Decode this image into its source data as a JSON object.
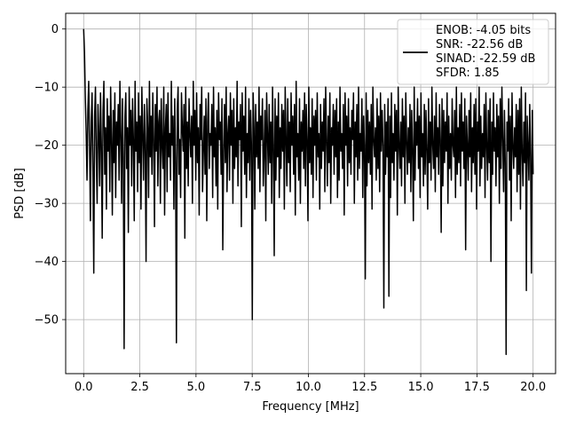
{
  "chart_data": {
    "type": "line",
    "title": "",
    "xlabel": "Frequency [MHz]",
    "ylabel": "PSD [dB]",
    "xlim": [
      -0.8,
      21.0
    ],
    "ylim": [
      -59.3,
      2.7
    ],
    "x_ticks": [
      0.0,
      2.5,
      5.0,
      7.5,
      10.0,
      12.5,
      15.0,
      17.5,
      20.0
    ],
    "x_tick_labels": [
      "0.0",
      "2.5",
      "5.0",
      "7.5",
      "10.0",
      "12.5",
      "15.0",
      "17.5",
      "20.0"
    ],
    "y_ticks": [
      0,
      -10,
      -20,
      -30,
      -40,
      -50
    ],
    "y_tick_labels": [
      "0",
      "−10",
      "−20",
      "−30",
      "−40",
      "−50"
    ],
    "grid": true,
    "legend_placement": "top-right",
    "line_color": "#000000",
    "series": [
      {
        "name": "",
        "x_start": 0.0,
        "x_end": 20.0,
        "values": [
          0,
          -4,
          -12,
          -18,
          -26,
          -14,
          -9,
          -20,
          -33,
          -16,
          -11,
          -24,
          -42,
          -15,
          -10,
          -22,
          -30,
          -13,
          -18,
          -27,
          -11,
          -20,
          -36,
          -14,
          -9,
          -25,
          -17,
          -31,
          -12,
          -21,
          -15,
          -28,
          -10,
          -19,
          -32,
          -14,
          -23,
          -11,
          -29,
          -16,
          -20,
          -13,
          -26,
          -9,
          -18,
          -30,
          -12,
          -22,
          -55,
          -15,
          -11,
          -24,
          -17,
          -35,
          -10,
          -20,
          -14,
          -27,
          -12,
          -19,
          -33,
          -9,
          -21,
          -16,
          -28,
          -11,
          -23,
          -15,
          -31,
          -10,
          -18,
          -26,
          -13,
          -20,
          -40,
          -12,
          -17,
          -29,
          -9,
          -22,
          -15,
          -25,
          -11,
          -19,
          -34,
          -13,
          -21,
          -10,
          -27,
          -16,
          -14,
          -30,
          -12,
          -20,
          -24,
          -10,
          -32,
          -17,
          -13,
          -28,
          -11,
          -22,
          -18,
          -26,
          -9,
          -20,
          -15,
          -31,
          -12,
          -23,
          -54,
          -14,
          -10,
          -25,
          -19,
          -29,
          -11,
          -17,
          -21,
          -13,
          -36,
          -10,
          -24,
          -16,
          -27,
          -12,
          -18,
          -22,
          -15,
          -30,
          -9,
          -20,
          -14,
          -26,
          -11,
          -23,
          -17,
          -32,
          -13,
          -19,
          -10,
          -28,
          -21,
          -15,
          -25,
          -12,
          -33,
          -16,
          -11,
          -24,
          -18,
          -20,
          -13,
          -29,
          -10,
          -22,
          -17,
          -27,
          -14,
          -31,
          -11,
          -19,
          -16,
          -25,
          -12,
          -38,
          -21,
          -13,
          -23,
          -10,
          -28,
          -18,
          -15,
          -26,
          -11,
          -20,
          -14,
          -30,
          -12,
          -24,
          -17,
          -22,
          -9,
          -27,
          -16,
          -19,
          -13,
          -34,
          -11,
          -21,
          -15,
          -25,
          -10,
          -29,
          -18,
          -23,
          -12,
          -26,
          -14,
          -20,
          -50,
          -11,
          -17,
          -31,
          -13,
          -22,
          -16,
          -24,
          -10,
          -28,
          -15,
          -19,
          -12,
          -27,
          -21,
          -14,
          -33,
          -11,
          -18,
          -25,
          -13,
          -23,
          -16,
          -30,
          -10,
          -20,
          -39,
          -12,
          -26,
          -15,
          -22,
          -11,
          -29,
          -17,
          -24,
          -13,
          -21,
          -14,
          -31,
          -10,
          -19,
          -27,
          -12,
          -23,
          -16,
          -28,
          -11,
          -20,
          -15,
          -25,
          -13,
          -32,
          -9,
          -22,
          -18,
          -26,
          -12,
          -30,
          -16,
          -21,
          -14,
          -24,
          -11,
          -27,
          -13,
          -19,
          -33,
          -10,
          -23,
          -17,
          -25,
          -12,
          -29,
          -15,
          -20,
          -14,
          -26,
          -11,
          -22,
          -18,
          -31,
          -13,
          -24,
          -16,
          -21,
          -12,
          -28,
          -10,
          -19,
          -27,
          -15,
          -23,
          -11,
          -30,
          -17,
          -20,
          -13,
          -25,
          -14,
          -22,
          -12,
          -29,
          -16,
          -26,
          -10,
          -21,
          -18,
          -24,
          -13,
          -32,
          -11,
          -20,
          -15,
          -27,
          -12,
          -23,
          -17,
          -25,
          -14,
          -19,
          -11,
          -30,
          -16,
          -22,
          -13,
          -26,
          -10,
          -24,
          -18,
          -21,
          -12,
          -29,
          -15,
          -20,
          -43,
          -11,
          -27,
          -14,
          -23,
          -16,
          -25,
          -13,
          -31,
          -10,
          -19,
          -22,
          -17,
          -26,
          -12,
          -24,
          -15,
          -28,
          -11,
          -21,
          -14,
          -20,
          -48,
          -13,
          -25,
          -16,
          -22,
          -12,
          -46,
          -15,
          -29,
          -11,
          -23,
          -18,
          -26,
          -13,
          -21,
          -14,
          -32,
          -10,
          -20,
          -24,
          -16,
          -27,
          -12,
          -22,
          -15,
          -30,
          -11,
          -19,
          -25,
          -17,
          -23,
          -13,
          -28,
          -14,
          -21,
          -33,
          -10,
          -26,
          -16,
          -20,
          -12,
          -24,
          -15,
          -29,
          -11,
          -22,
          -18,
          -27,
          -13,
          -25,
          -14,
          -21,
          -31,
          -12,
          -23,
          -16,
          -26,
          -10,
          -20,
          -24,
          -15,
          -28,
          -11,
          -22,
          -17,
          -25,
          -13,
          -19,
          -35,
          -12,
          -27,
          -14,
          -23,
          -16,
          -21,
          -11,
          -30,
          -15,
          -24,
          -18,
          -26,
          -12,
          -20,
          -22,
          -14,
          -29,
          -10,
          -25,
          -17,
          -23,
          -13,
          -27,
          -11,
          -21,
          -16,
          -24,
          -12,
          -38,
          -15,
          -20,
          -26,
          -14,
          -22,
          -11,
          -28,
          -17,
          -23,
          -13,
          -25,
          -12,
          -31,
          -16,
          -21,
          -10,
          -27,
          -15,
          -24,
          -18,
          -22,
          -13,
          -29,
          -11,
          -20,
          -26,
          -14,
          -23,
          -12,
          -40,
          -16,
          -25,
          -11,
          -21,
          -17,
          -27,
          -13,
          -22,
          -15,
          -30,
          -12,
          -24,
          -10,
          -19,
          -28,
          -14,
          -23,
          -56,
          -16,
          -21,
          -12,
          -26,
          -15,
          -33,
          -11,
          -20,
          -24,
          -17,
          -22,
          -13,
          -28,
          -14,
          -25,
          -12,
          -31,
          -10,
          -21,
          -27,
          -16,
          -23,
          -11,
          -45,
          -15,
          -20,
          -26,
          -13,
          -22,
          -42,
          -14,
          -25
        ]
      }
    ],
    "legend_entries": [
      "ENOB: -4.05 bits",
      "SNR: -22.56 dB",
      "SINAD: -22.59 dB",
      "SFDR: 1.85"
    ]
  }
}
